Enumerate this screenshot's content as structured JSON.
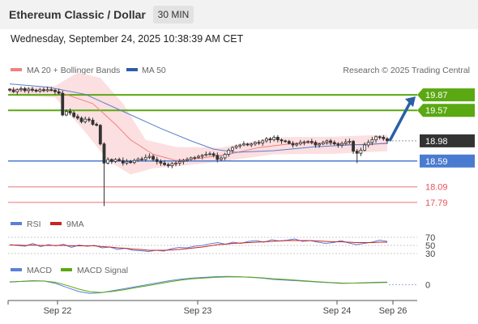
{
  "header": {
    "title": "Ethereum Classic / Dollar",
    "timeframe": "30 MIN",
    "datetime": "Wednesday, September 24, 2025 10:38:39 AM CET"
  },
  "legend": {
    "ma20": "MA 20 + Bollinger Bands",
    "ma50": "MA 50",
    "credit": "Research © 2025 Trading Central",
    "rsi": "RSI",
    "rsi_ma": "9MA",
    "macd": "MACD",
    "macd_signal": "MACD Signal"
  },
  "colors": {
    "candle": "#333333",
    "resistance": "#5aa812",
    "pivot": "#4a7bd0",
    "support": "#e8505b",
    "last_price": "#333333",
    "bollinger_fill": "#fbd9dc",
    "ma20": "#f08080",
    "ma50": "#5a7ec9",
    "rsi_line": "#5b7fd9",
    "rsi_ma_line": "#cc2222",
    "macd_line": "#5b7fd9",
    "macd_signal_line": "#5aa812",
    "arrow": "#2a5fa8"
  },
  "chart_data": [
    {
      "type": "candlestick",
      "title": "Ethereum Classic / Dollar",
      "timeframe": "30 MIN",
      "x_ticks": [
        "Sep 22",
        "Sep 23",
        "Sep 24",
        "Sep 26"
      ],
      "ylim": [
        17.6,
        20.2
      ],
      "levels": [
        {
          "value": 19.87,
          "label": "19.87",
          "kind": "resistance"
        },
        {
          "value": 19.57,
          "label": "19.57",
          "kind": "resistance"
        },
        {
          "value": 18.98,
          "label": "18.98",
          "kind": "last_price"
        },
        {
          "value": 18.59,
          "label": "18.59",
          "kind": "pivot"
        },
        {
          "value": 18.09,
          "label": "18.09",
          "kind": "support"
        },
        {
          "value": 17.79,
          "label": "17.79",
          "kind": "support"
        }
      ],
      "close": [
        19.96,
        19.93,
        19.97,
        19.99,
        19.95,
        19.98,
        19.96,
        19.94,
        19.97,
        19.95,
        19.97,
        19.96,
        19.93,
        19.9,
        19.48,
        19.55,
        19.52,
        19.45,
        19.42,
        19.35,
        19.4,
        19.38,
        19.3,
        19.28,
        18.92,
        18.55,
        18.62,
        18.58,
        18.62,
        18.6,
        18.55,
        18.58,
        18.56,
        18.6,
        18.63,
        18.62,
        18.66,
        18.68,
        18.62,
        18.58,
        18.55,
        18.52,
        18.5,
        18.54,
        18.55,
        18.58,
        18.6,
        18.62,
        18.65,
        18.66,
        18.68,
        18.7,
        18.72,
        18.73,
        18.7,
        18.62,
        18.65,
        18.72,
        18.8,
        18.85,
        18.88,
        18.9,
        18.92,
        18.9,
        18.92,
        18.95,
        18.94,
        18.98,
        19.02,
        19.0,
        19.05,
        19.0,
        18.98,
        18.97,
        18.93,
        18.9,
        18.92,
        18.95,
        18.96,
        18.97,
        18.95,
        18.9,
        18.92,
        18.95,
        18.98,
        18.95,
        18.92,
        18.9,
        18.93,
        18.96,
        18.97,
        18.78,
        18.74,
        18.8,
        18.9,
        18.95,
        19.0,
        19.06,
        19.05,
        19.02,
        18.98
      ],
      "ma20_points": [
        [
          0,
          19.97
        ],
        [
          12,
          19.95
        ],
        [
          22,
          19.7
        ],
        [
          28,
          19.3
        ],
        [
          32,
          19.0
        ],
        [
          38,
          18.72
        ],
        [
          44,
          18.6
        ],
        [
          50,
          18.64
        ],
        [
          58,
          18.72
        ],
        [
          66,
          18.85
        ],
        [
          76,
          18.94
        ],
        [
          86,
          18.93
        ],
        [
          94,
          18.9
        ],
        [
          100,
          18.94
        ]
      ],
      "ma50_points": [
        [
          0,
          20.08
        ],
        [
          10,
          20.02
        ],
        [
          20,
          19.88
        ],
        [
          30,
          19.55
        ],
        [
          40,
          19.22
        ],
        [
          48,
          18.98
        ],
        [
          54,
          18.82
        ],
        [
          60,
          18.76
        ],
        [
          70,
          18.79
        ],
        [
          80,
          18.86
        ],
        [
          90,
          18.9
        ],
        [
          100,
          18.93
        ]
      ],
      "bollinger_upper": [
        [
          0,
          20.0
        ],
        [
          12,
          20.04
        ],
        [
          18,
          20.3
        ],
        [
          24,
          20.2
        ],
        [
          30,
          19.7
        ],
        [
          36,
          19.0
        ],
        [
          44,
          18.86
        ],
        [
          56,
          18.85
        ],
        [
          70,
          19.05
        ],
        [
          86,
          19.06
        ],
        [
          100,
          19.1
        ]
      ],
      "bollinger_lower": [
        [
          0,
          19.86
        ],
        [
          12,
          19.82
        ],
        [
          20,
          19.15
        ],
        [
          26,
          18.6
        ],
        [
          32,
          18.33
        ],
        [
          38,
          18.45
        ],
        [
          46,
          18.5
        ],
        [
          56,
          18.58
        ],
        [
          70,
          18.72
        ],
        [
          86,
          18.73
        ],
        [
          100,
          18.78
        ]
      ],
      "forecast_arrow": {
        "from": 18.98,
        "to": 19.87
      }
    },
    {
      "type": "line",
      "title": "RSI",
      "yticks": [
        70,
        50,
        30
      ],
      "ylim": [
        20,
        80
      ],
      "series": [
        {
          "name": "RSI",
          "values": [
            52,
            50,
            48,
            55,
            47,
            52,
            49,
            53,
            45,
            51,
            48,
            50,
            44,
            46,
            40,
            43,
            38,
            37,
            35,
            38,
            36,
            42,
            45,
            44,
            48,
            50,
            54,
            57,
            53,
            58,
            55,
            60,
            62,
            58,
            64,
            61,
            63,
            66,
            60,
            62,
            58,
            55,
            57,
            62,
            56,
            52,
            55,
            58,
            63,
            60
          ]
        },
        {
          "name": "9MA",
          "values": [
            51,
            51,
            50,
            51,
            50,
            50,
            50,
            50,
            49,
            49,
            49,
            49,
            47,
            46,
            44,
            43,
            41,
            40,
            38,
            38,
            38,
            39,
            40,
            42,
            44,
            46,
            49,
            52,
            53,
            55,
            56,
            57,
            58,
            59,
            60,
            61,
            62,
            62,
            62,
            62,
            61,
            60,
            59,
            59,
            58,
            57,
            57,
            57,
            58,
            58
          ]
        }
      ]
    },
    {
      "type": "line",
      "title": "MACD",
      "yticks": [
        0
      ],
      "ylim": [
        -1,
        1
      ],
      "series": [
        {
          "name": "MACD",
          "values": [
            0.2,
            0.25,
            0.3,
            0.28,
            0.1,
            -0.2,
            -0.5,
            -0.65,
            -0.6,
            -0.45,
            -0.3,
            -0.15,
            0.0,
            0.15,
            0.3,
            0.42,
            0.5,
            0.55,
            0.6,
            0.62,
            0.6,
            0.55,
            0.5,
            0.4,
            0.35,
            0.3,
            0.25,
            0.2,
            0.15,
            0.1,
            0.12,
            0.15,
            0.18,
            0.2
          ]
        },
        {
          "name": "MACD Signal",
          "values": [
            0.22,
            0.24,
            0.27,
            0.27,
            0.18,
            -0.05,
            -0.32,
            -0.52,
            -0.58,
            -0.5,
            -0.38,
            -0.22,
            -0.08,
            0.07,
            0.22,
            0.35,
            0.45,
            0.5,
            0.55,
            0.58,
            0.59,
            0.57,
            0.52,
            0.45,
            0.4,
            0.34,
            0.28,
            0.22,
            0.17,
            0.13,
            0.12,
            0.13,
            0.15,
            0.17
          ]
        }
      ]
    }
  ]
}
